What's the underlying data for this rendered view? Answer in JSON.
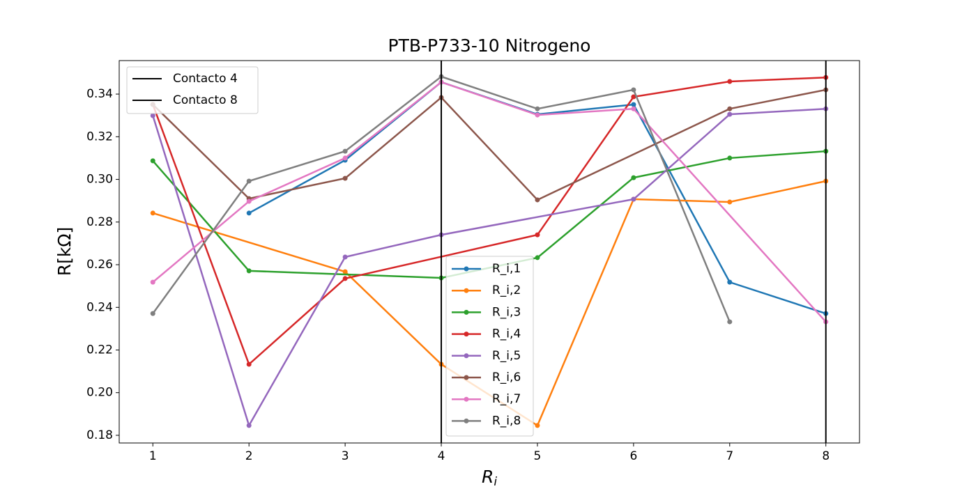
{
  "chart_data": {
    "type": "line",
    "title": "PTB-P733-10 Nitrogeno",
    "x_label": {
      "base": "R",
      "sub": "i"
    },
    "y_label": "R[kΩ]",
    "xlim": [
      0.65,
      8.35
    ],
    "ylim": [
      0.1764,
      0.3557
    ],
    "xticks": [
      1,
      2,
      3,
      4,
      5,
      6,
      7,
      8
    ],
    "yticks": [
      0.18,
      {
        "value": 0.2,
        "label": "0.20"
      },
      0.22,
      0.24,
      0.26,
      0.28,
      {
        "value": 0.3,
        "label": "0.30"
      },
      0.32,
      0.34
    ],
    "vlines": [
      {
        "x": 4,
        "label": "Contacto 4",
        "color": "#000000"
      },
      {
        "x": 8,
        "label": "Contacto 8",
        "color": "#000000"
      }
    ],
    "series": [
      {
        "name": "R_i,1",
        "color": "#1f77b4",
        "x": [
          2,
          3,
          4,
          5,
          6,
          7,
          8
        ],
        "values": [
          0.2842,
          0.309,
          0.3456,
          0.3305,
          0.3351,
          0.2518,
          0.2371
        ]
      },
      {
        "name": "R_i,2",
        "color": "#ff7f0e",
        "x": [
          1,
          3,
          4,
          5,
          6,
          7,
          8
        ],
        "values": [
          0.2842,
          0.2567,
          0.2133,
          0.1846,
          0.2907,
          0.2894,
          0.2992
        ]
      },
      {
        "name": "R_i,3",
        "color": "#2ca02c",
        "x": [
          1,
          2,
          4,
          5,
          6,
          7,
          8
        ],
        "values": [
          0.3087,
          0.2571,
          0.2538,
          0.2633,
          0.3008,
          0.31,
          0.3132
        ]
      },
      {
        "name": "R_i,4",
        "color": "#d62728",
        "x": [
          1,
          2,
          3,
          5,
          6,
          7,
          8
        ],
        "values": [
          0.3351,
          0.2133,
          0.2535,
          0.274,
          0.3387,
          0.3459,
          0.3478
        ]
      },
      {
        "name": "R_i,5",
        "color": "#9467bd",
        "x": [
          1,
          2,
          3,
          4,
          6,
          7,
          8
        ],
        "values": [
          0.3299,
          0.1846,
          0.2636,
          0.274,
          0.2907,
          0.3305,
          0.3331
        ]
      },
      {
        "name": "R_i,6",
        "color": "#8c564b",
        "x": [
          1,
          2,
          3,
          4,
          5,
          7,
          8
        ],
        "values": [
          0.3351,
          0.291,
          0.3005,
          0.3384,
          0.2904,
          0.3331,
          0.342
        ]
      },
      {
        "name": "R_i,7",
        "color": "#e377c2",
        "x": [
          1,
          2,
          3,
          4,
          5,
          6,
          8
        ],
        "values": [
          0.2518,
          0.2897,
          0.31,
          0.3456,
          0.3302,
          0.3331,
          0.2332
        ]
      },
      {
        "name": "R_i,8",
        "color": "#7f7f7f",
        "x": [
          1,
          2,
          3,
          4,
          5,
          6,
          7
        ],
        "values": [
          0.2371,
          0.2992,
          0.3132,
          0.3482,
          0.3331,
          0.342,
          0.2332
        ]
      }
    ]
  }
}
